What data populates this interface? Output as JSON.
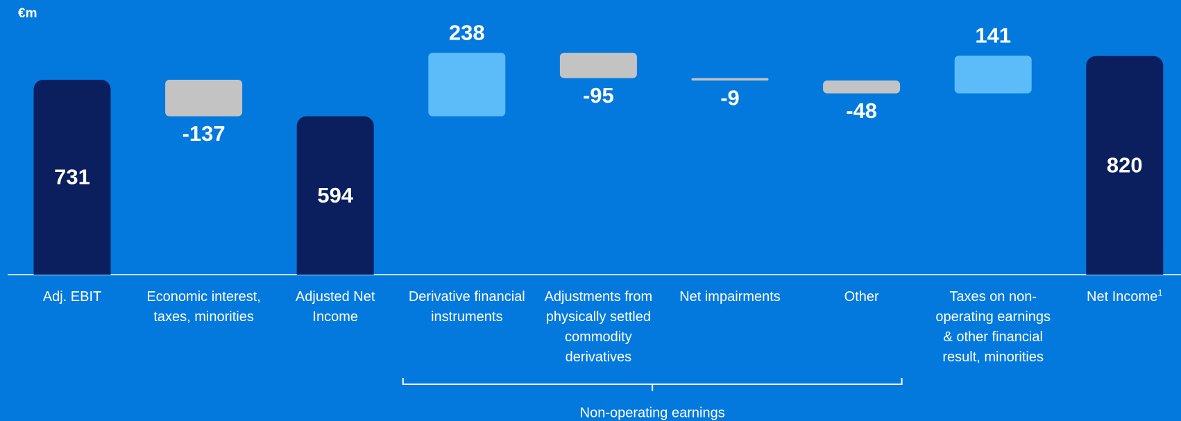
{
  "chart_data": {
    "type": "waterfall",
    "unit_label": "€m",
    "categories": [
      "Adj. EBIT",
      "Economic interest, taxes, minorities",
      "Adjusted Net Income",
      "Derivative financial instruments",
      "Adjustments from physically settled commodity derivatives",
      "Net impairments",
      "Other",
      "Taxes on non-operating earnings & other financial result, minorities",
      "Net Income"
    ],
    "category_superscripts": [
      null,
      null,
      null,
      null,
      null,
      null,
      null,
      null,
      "1"
    ],
    "values": [
      731,
      -137,
      594,
      238,
      -95,
      -9,
      -48,
      141,
      820
    ],
    "measure": [
      "total",
      "relative",
      "total",
      "relative",
      "relative",
      "relative",
      "relative",
      "relative",
      "total"
    ],
    "colors": {
      "total": "#0b1f5e",
      "increase": "#5bbcf9",
      "decrease": "#c3c3c3"
    },
    "ylim": [
      0,
      900
    ],
    "group": {
      "label": "Non-operating earnings",
      "from": 3,
      "to": 6
    }
  }
}
